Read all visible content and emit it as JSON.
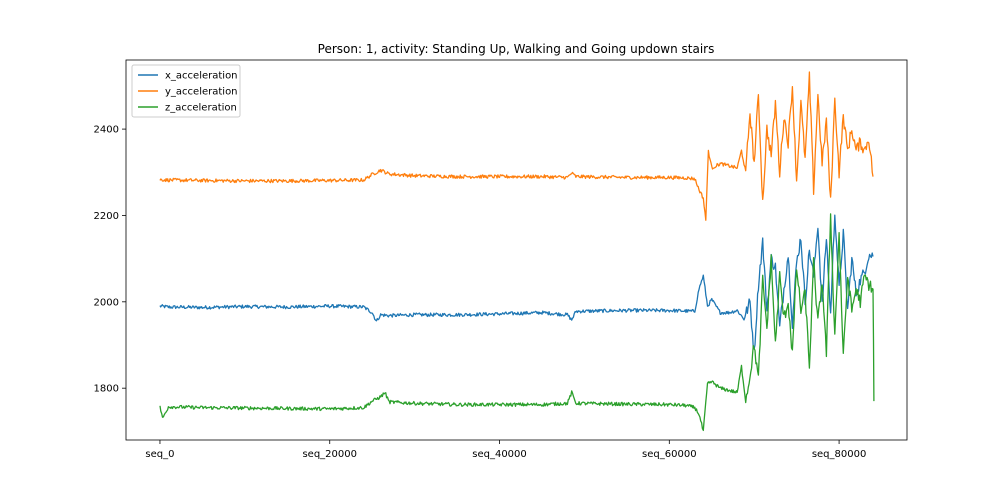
{
  "chart_data": {
    "type": "line",
    "title": "Person: 1, activity: Standing Up, Walking and Going updown stairs",
    "xlabel": "",
    "ylabel": "",
    "xlim": [
      -4000,
      88000
    ],
    "ylim": [
      1680,
      2560
    ],
    "grid": false,
    "legend_position": "top-left",
    "x_ticks": [
      {
        "value": 0,
        "label": "seq_0"
      },
      {
        "value": 20000,
        "label": "seq_20000"
      },
      {
        "value": 40000,
        "label": "seq_40000"
      },
      {
        "value": 60000,
        "label": "seq_60000"
      },
      {
        "value": 80000,
        "label": "seq_80000"
      }
    ],
    "y_ticks": [
      {
        "value": 1800,
        "label": "1800"
      },
      {
        "value": 2000,
        "label": "2000"
      },
      {
        "value": 2200,
        "label": "2200"
      },
      {
        "value": 2400,
        "label": "2400"
      }
    ],
    "series": [
      {
        "name": "x_acceleration",
        "color": "#1f77b4",
        "x": [
          0,
          1000,
          5000,
          10000,
          15000,
          20000,
          24000,
          25000,
          25500,
          26000,
          27000,
          30000,
          35000,
          40000,
          45000,
          48000,
          48500,
          49000,
          55000,
          60000,
          63000,
          63500,
          64000,
          64500,
          65000,
          66000,
          67000,
          68000,
          68800,
          69500,
          70000,
          70500,
          71000,
          71500,
          72000,
          72500,
          73000,
          73500,
          74000,
          74500,
          75000,
          75500,
          76000,
          76500,
          77000,
          77500,
          78000,
          78500,
          79000,
          79500,
          80000,
          80500,
          81000,
          81500,
          82000,
          82500,
          83000,
          83500,
          84000
        ],
        "values": [
          1990,
          1988,
          1987,
          1989,
          1988,
          1990,
          1988,
          1975,
          1955,
          1970,
          1968,
          1970,
          1970,
          1972,
          1975,
          1970,
          1958,
          1978,
          1980,
          1980,
          1978,
          2030,
          2060,
          1990,
          2005,
          1975,
          1975,
          1980,
          1960,
          2000,
          1880,
          2040,
          2140,
          1980,
          2100,
          2080,
          1940,
          2030,
          2110,
          1950,
          2090,
          2150,
          2000,
          2120,
          2060,
          2180,
          1990,
          2150,
          1970,
          2210,
          2030,
          2160,
          1980,
          2100,
          2020,
          2050,
          2070,
          2110,
          2105
        ]
      },
      {
        "name": "y_acceleration",
        "color": "#ff7f0e",
        "x": [
          0,
          1000,
          5000,
          10000,
          15000,
          20000,
          24000,
          25000,
          26000,
          27000,
          30000,
          35000,
          40000,
          45000,
          48000,
          48500,
          49000,
          55000,
          60000,
          62000,
          63000,
          63500,
          64000,
          64300,
          64600,
          65000,
          66000,
          67000,
          68000,
          68500,
          69000,
          69500,
          70000,
          70500,
          71000,
          71500,
          72000,
          72500,
          73000,
          73500,
          74000,
          74500,
          75000,
          75500,
          76000,
          76500,
          77000,
          77500,
          78000,
          78500,
          79000,
          79500,
          80000,
          80500,
          81000,
          81500,
          82000,
          82500,
          83000,
          83500,
          84000
        ],
        "values": [
          2283,
          2282,
          2281,
          2280,
          2280,
          2281,
          2282,
          2295,
          2305,
          2296,
          2292,
          2290,
          2290,
          2290,
          2288,
          2298,
          2290,
          2288,
          2288,
          2287,
          2285,
          2260,
          2240,
          2190,
          2350,
          2310,
          2320,
          2315,
          2310,
          2350,
          2300,
          2440,
          2320,
          2480,
          2230,
          2400,
          2340,
          2460,
          2300,
          2430,
          2370,
          2500,
          2280,
          2460,
          2330,
          2520,
          2260,
          2480,
          2320,
          2420,
          2230,
          2470,
          2300,
          2430,
          2350,
          2400,
          2350,
          2370,
          2350,
          2380,
          2290
        ]
      },
      {
        "name": "z_acceleration",
        "color": "#2ca02c",
        "x": [
          0,
          300,
          1000,
          5000,
          10000,
          15000,
          20000,
          24000,
          25000,
          26000,
          26500,
          27000,
          30000,
          35000,
          40000,
          45000,
          48000,
          48500,
          49000,
          55000,
          60000,
          62000,
          63000,
          63500,
          64000,
          64500,
          65000,
          66000,
          67000,
          68000,
          68500,
          69000,
          69500,
          70000,
          70500,
          71000,
          71500,
          72000,
          72500,
          73000,
          73500,
          74000,
          74500,
          75000,
          75500,
          76000,
          76500,
          77000,
          77500,
          78000,
          78500,
          79000,
          79500,
          80000,
          80500,
          81000,
          81500,
          82000,
          82500,
          83000,
          83500,
          84000,
          84100
        ],
        "values": [
          1758,
          1730,
          1757,
          1755,
          1754,
          1753,
          1752,
          1755,
          1770,
          1780,
          1790,
          1768,
          1765,
          1762,
          1762,
          1762,
          1765,
          1790,
          1765,
          1763,
          1762,
          1760,
          1755,
          1740,
          1700,
          1810,
          1815,
          1800,
          1795,
          1790,
          1850,
          1770,
          1830,
          1900,
          1820,
          2050,
          1940,
          2100,
          1900,
          2060,
          1960,
          2000,
          1880,
          2080,
          1980,
          2020,
          1850,
          2090,
          1950,
          2050,
          1880,
          2200,
          1920,
          2160,
          1870,
          2060,
          1980,
          2030,
          2000,
          2060,
          2040,
          2030,
          1770
        ]
      }
    ]
  }
}
